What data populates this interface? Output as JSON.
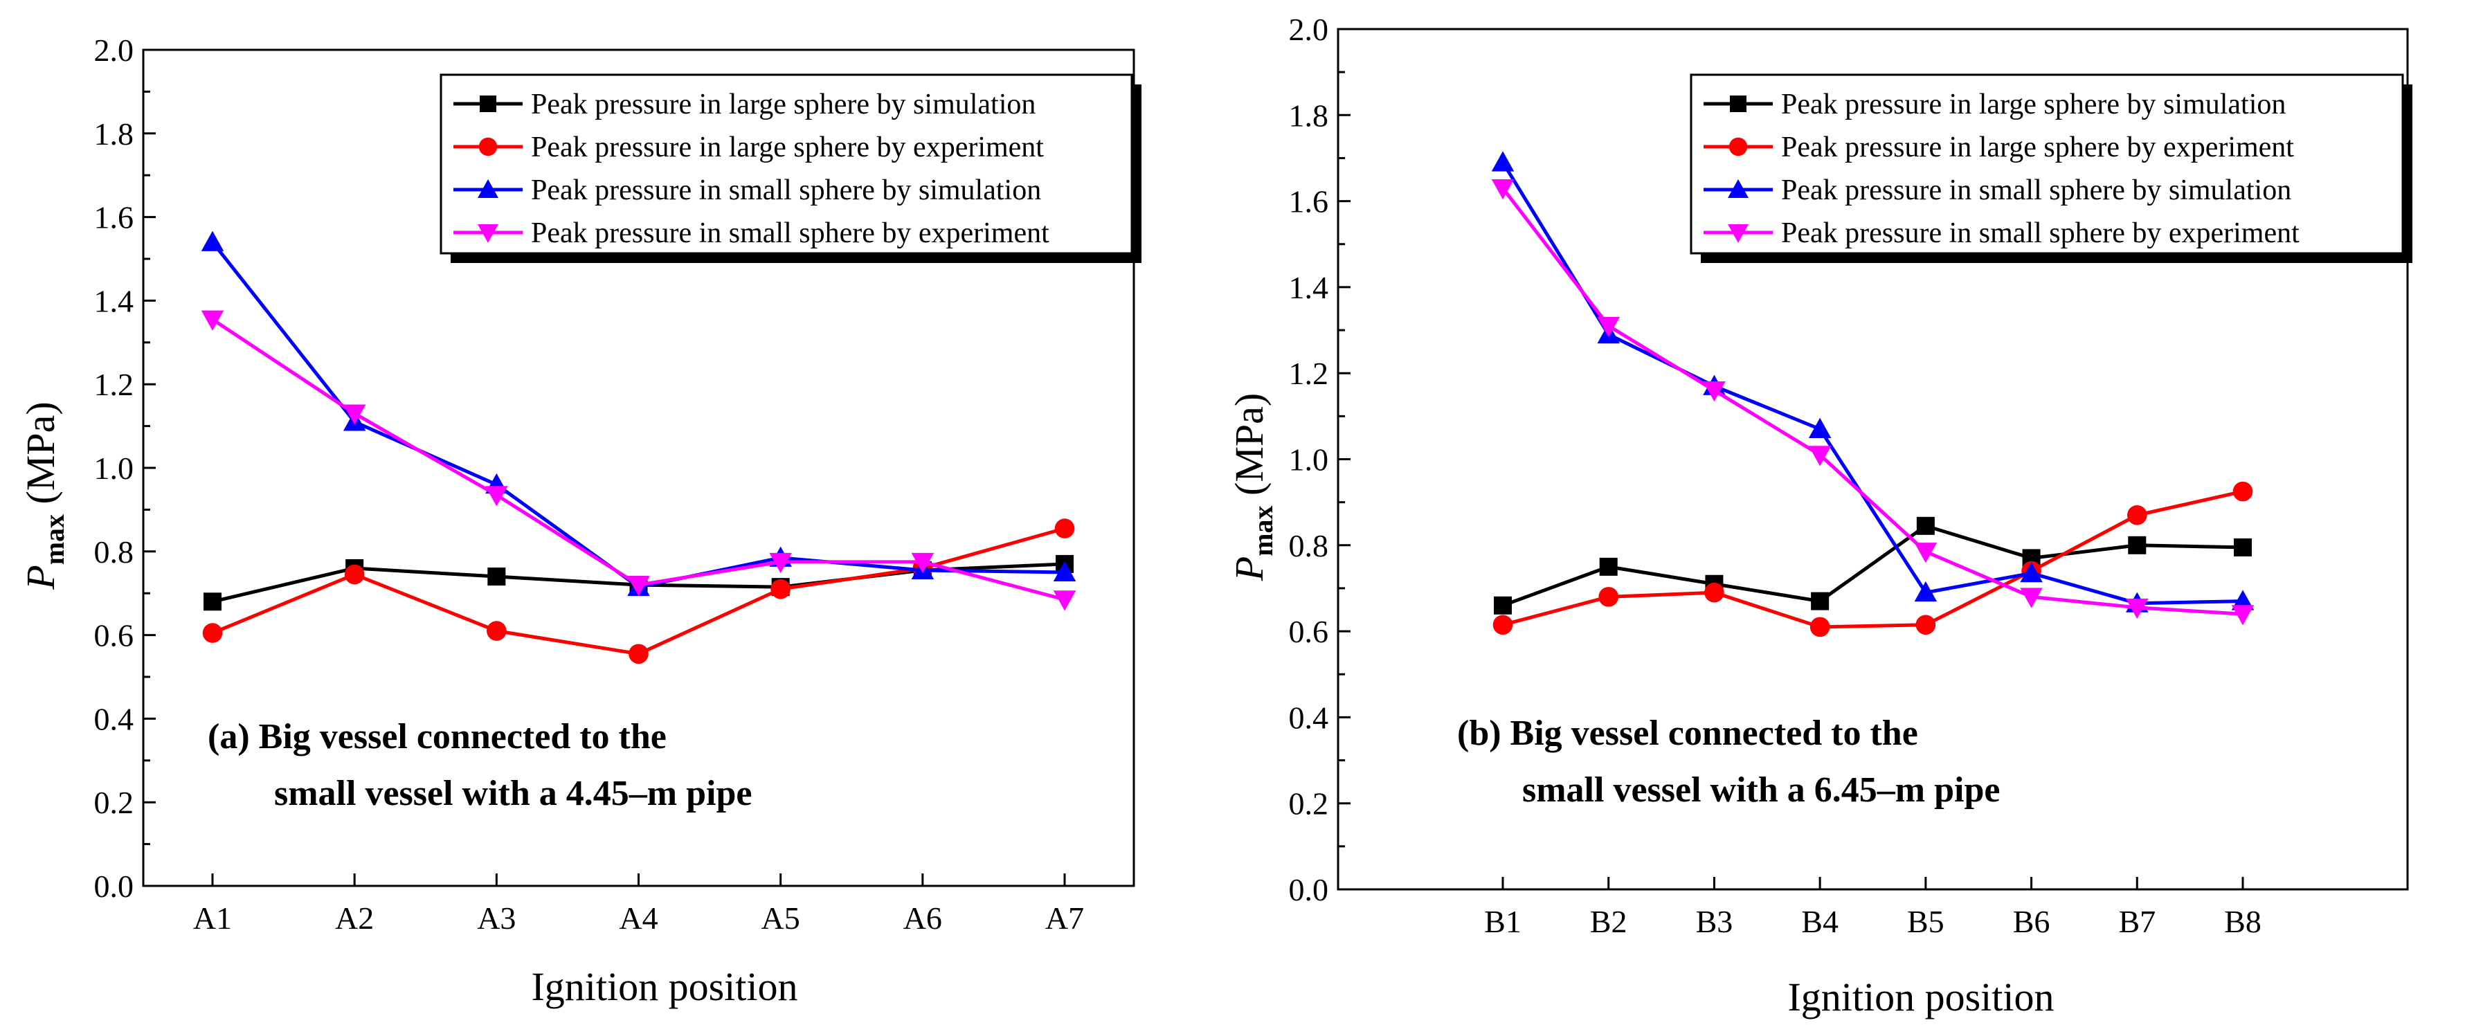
{
  "chart_data": [
    {
      "type": "line",
      "panel": "a",
      "title": "",
      "xlabel": "Ignition position",
      "ylabel_main": "P",
      "ylabel_sub": "max",
      "ylabel_unit": "(MPa)",
      "ylim": [
        0.0,
        2.0
      ],
      "y_ticks": [
        "0.0",
        "0.2",
        "0.4",
        "0.6",
        "0.8",
        "1.0",
        "1.2",
        "1.4",
        "1.6",
        "1.8",
        "2.0"
      ],
      "categories": [
        "A1",
        "A2",
        "A3",
        "A4",
        "A5",
        "A6",
        "A7"
      ],
      "legend_position": "top-right",
      "annotation": [
        "(a) Big vessel connected to the",
        "small vessel with a 4.45–m pipe"
      ],
      "series": [
        {
          "name": "Peak pressure in large sphere by simulation",
          "color": "#000000",
          "marker": "square",
          "values": [
            0.68,
            0.76,
            0.74,
            0.72,
            0.715,
            0.755,
            0.77
          ]
        },
        {
          "name": "Peak pressure in large sphere by experiment",
          "color": "#ff0000",
          "marker": "circle",
          "values": [
            0.605,
            0.745,
            0.61,
            0.555,
            0.71,
            0.76,
            0.855
          ]
        },
        {
          "name": "Peak pressure in small sphere by simulation",
          "color": "#0000ff",
          "marker": "triangle-up",
          "values": [
            1.54,
            1.11,
            0.96,
            0.715,
            0.785,
            0.755,
            0.75
          ]
        },
        {
          "name": "Peak pressure in small sphere by experiment",
          "color": "#ff00ff",
          "marker": "triangle-down",
          "values": [
            1.355,
            1.13,
            0.935,
            0.72,
            0.775,
            0.775,
            0.685
          ]
        }
      ]
    },
    {
      "type": "line",
      "panel": "b",
      "title": "",
      "xlabel": "Ignition position",
      "ylabel_main": "P",
      "ylabel_sub": "max",
      "ylabel_unit": "(MPa)",
      "ylim": [
        0.0,
        2.0
      ],
      "y_ticks": [
        "0.0",
        "0.2",
        "0.4",
        "0.6",
        "0.8",
        "1.0",
        "1.2",
        "1.4",
        "1.6",
        "1.8",
        "2.0"
      ],
      "categories": [
        "B1",
        "B2",
        "B3",
        "B4",
        "B5",
        "B6",
        "B7",
        "B8"
      ],
      "legend_position": "top-right",
      "annotation": [
        "(b) Big vessel connected to the",
        "small vessel with a 6.45–m pipe"
      ],
      "series": [
        {
          "name": "Peak pressure in large sphere by simulation",
          "color": "#000000",
          "marker": "square",
          "values": [
            0.66,
            0.75,
            0.71,
            0.67,
            0.845,
            0.77,
            0.8,
            0.795
          ]
        },
        {
          "name": "Peak pressure in large sphere by experiment",
          "color": "#ff0000",
          "marker": "circle",
          "values": [
            0.615,
            0.68,
            0.69,
            0.61,
            0.615,
            0.74,
            0.87,
            0.925
          ]
        },
        {
          "name": "Peak pressure in small sphere by simulation",
          "color": "#0000ff",
          "marker": "triangle-up",
          "values": [
            1.69,
            1.29,
            1.17,
            1.07,
            0.69,
            0.735,
            0.665,
            0.67
          ]
        },
        {
          "name": "Peak pressure in small sphere by experiment",
          "color": "#ff00ff",
          "marker": "triangle-down",
          "values": [
            1.63,
            1.31,
            1.16,
            1.01,
            0.785,
            0.68,
            0.655,
            0.64
          ]
        }
      ]
    }
  ]
}
